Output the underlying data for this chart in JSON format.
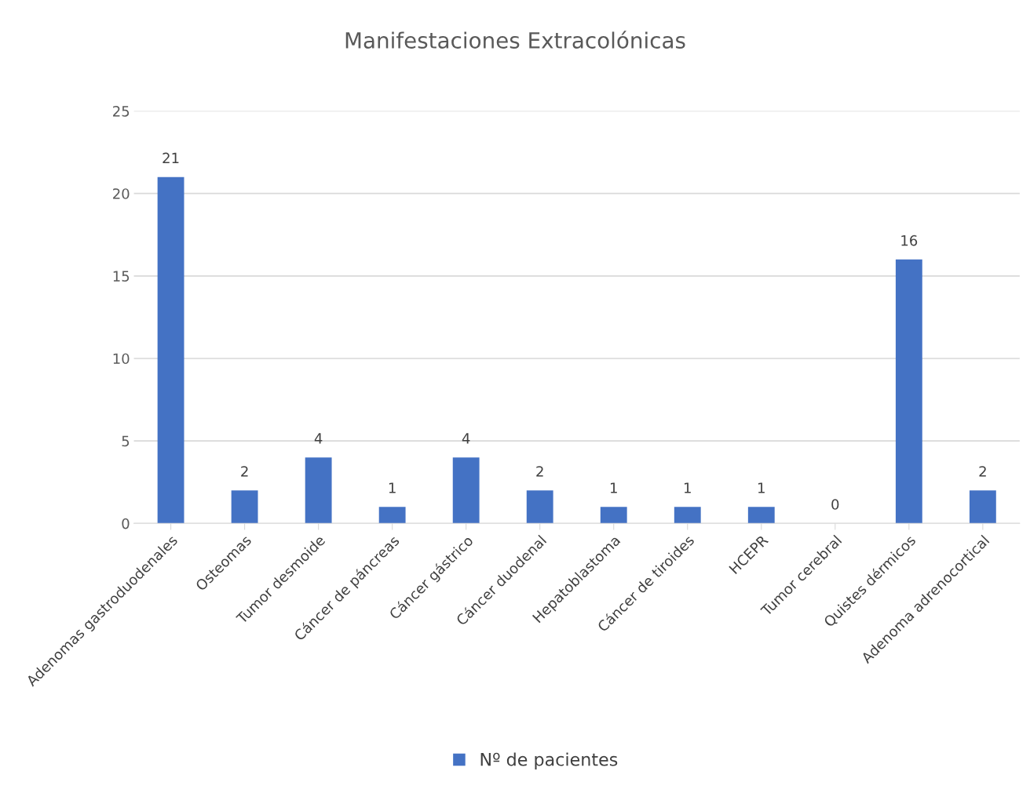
{
  "chart_data": {
    "type": "bar",
    "title": "Manifestaciones Extracolónicas",
    "categories": [
      "Adenomas gastroduodenales",
      "Osteomas",
      "Tumor desmoide",
      "Cáncer de páncreas",
      "Cáncer gástrico",
      "Cáncer duodenal",
      "Hepatoblastoma",
      "Cáncer de tiroides",
      "HCEPR",
      "Tumor cerebral",
      "Quistes dérmicos",
      "Adenoma adrenocortical"
    ],
    "series": [
      {
        "name": "Nº de pacientes",
        "color": "#4472c4",
        "values": [
          21,
          2,
          4,
          1,
          4,
          2,
          1,
          1,
          1,
          0,
          16,
          2
        ]
      }
    ],
    "ylim": [
      0,
      25
    ],
    "yticks": [
      0,
      5,
      10,
      15,
      20,
      25
    ],
    "grid": "y",
    "data_labels": true,
    "legend": "bottom"
  }
}
